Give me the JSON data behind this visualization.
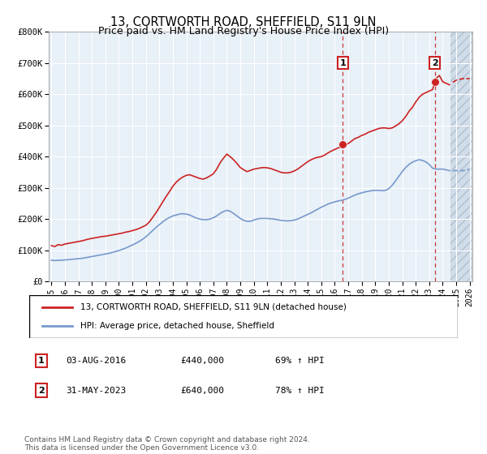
{
  "title": "13, CORTWORTH ROAD, SHEFFIELD, S11 9LN",
  "subtitle": "Price paid vs. HM Land Registry's House Price Index (HPI)",
  "ylim": [
    0,
    800000
  ],
  "xlim_start": 1994.8,
  "xlim_end": 2026.2,
  "yticks": [
    0,
    100000,
    200000,
    300000,
    400000,
    500000,
    600000,
    700000,
    800000
  ],
  "ytick_labels": [
    "£0",
    "£100K",
    "£200K",
    "£300K",
    "£400K",
    "£500K",
    "£600K",
    "£700K",
    "£800K"
  ],
  "xtick_years": [
    1995,
    1996,
    1997,
    1998,
    1999,
    2000,
    2001,
    2002,
    2003,
    2004,
    2005,
    2006,
    2007,
    2008,
    2009,
    2010,
    2011,
    2012,
    2013,
    2014,
    2015,
    2016,
    2017,
    2018,
    2019,
    2020,
    2021,
    2022,
    2023,
    2024,
    2025,
    2026
  ],
  "sale1_x": 2016.6,
  "sale1_y": 440000,
  "sale1_label": "1",
  "sale1_date": "03-AUG-2016",
  "sale1_price": "£440,000",
  "sale1_hpi": "69% ↑ HPI",
  "sale2_x": 2023.42,
  "sale2_y": 640000,
  "sale2_label": "2",
  "sale2_date": "31-MAY-2023",
  "sale2_price": "£640,000",
  "sale2_hpi": "78% ↑ HPI",
  "hatch_start": 2024.6,
  "red_line_color": "#cc2222",
  "blue_line_color": "#7799cc",
  "marker_fill": "#cc2222",
  "bg_color": "#e8f0f8",
  "grid_color": "#ffffff",
  "legend_line1": "13, CORTWORTH ROAD, SHEFFIELD, S11 9LN (detached house)",
  "legend_line2": "HPI: Average price, detached house, Sheffield",
  "footnote": "Contains HM Land Registry data © Crown copyright and database right 2024.\nThis data is licensed under the Open Government Licence v3.0.",
  "red_years": [
    1995.0,
    1995.25,
    1995.5,
    1995.75,
    1996.0,
    1996.25,
    1996.5,
    1996.75,
    1997.0,
    1997.25,
    1997.5,
    1997.75,
    1998.0,
    1998.25,
    1998.5,
    1998.75,
    1999.0,
    1999.25,
    1999.5,
    1999.75,
    2000.0,
    2000.25,
    2000.5,
    2000.75,
    2001.0,
    2001.25,
    2001.5,
    2001.75,
    2002.0,
    2002.25,
    2002.5,
    2002.75,
    2003.0,
    2003.25,
    2003.5,
    2003.75,
    2004.0,
    2004.25,
    2004.5,
    2004.75,
    2005.0,
    2005.25,
    2005.5,
    2005.75,
    2006.0,
    2006.25,
    2006.5,
    2006.75,
    2007.0,
    2007.25,
    2007.5,
    2007.75,
    2008.0,
    2008.25,
    2008.5,
    2008.75,
    2009.0,
    2009.25,
    2009.5,
    2009.75,
    2010.0,
    2010.25,
    2010.5,
    2010.75,
    2011.0,
    2011.25,
    2011.5,
    2011.75,
    2012.0,
    2012.25,
    2012.5,
    2012.75,
    2013.0,
    2013.25,
    2013.5,
    2013.75,
    2014.0,
    2014.25,
    2014.5,
    2014.75,
    2015.0,
    2015.25,
    2015.5,
    2015.75,
    2016.0,
    2016.25,
    2016.5,
    2016.75,
    2017.0,
    2017.25,
    2017.5,
    2017.75,
    2018.0,
    2018.25,
    2018.5,
    2018.75,
    2019.0,
    2019.25,
    2019.5,
    2019.75,
    2020.0,
    2020.25,
    2020.5,
    2020.75,
    2021.0,
    2021.25,
    2021.5,
    2021.75,
    2022.0,
    2022.25,
    2022.5,
    2022.75,
    2023.0,
    2023.25,
    2023.5,
    2023.75,
    2024.0,
    2024.25,
    2024.5,
    2024.75,
    2025.0,
    2025.5,
    2026.0
  ],
  "red_vals": [
    115000,
    112000,
    118000,
    116000,
    120000,
    122000,
    124000,
    126000,
    128000,
    130000,
    133000,
    136000,
    138000,
    140000,
    142000,
    144000,
    145000,
    147000,
    149000,
    151000,
    153000,
    155000,
    158000,
    160000,
    163000,
    166000,
    170000,
    175000,
    180000,
    190000,
    205000,
    220000,
    237000,
    255000,
    272000,
    288000,
    305000,
    318000,
    328000,
    335000,
    340000,
    342000,
    338000,
    334000,
    330000,
    328000,
    332000,
    338000,
    345000,
    360000,
    380000,
    395000,
    408000,
    400000,
    390000,
    378000,
    365000,
    358000,
    352000,
    356000,
    360000,
    362000,
    364000,
    365000,
    364000,
    362000,
    358000,
    354000,
    350000,
    348000,
    348000,
    350000,
    354000,
    360000,
    368000,
    376000,
    384000,
    390000,
    395000,
    398000,
    400000,
    405000,
    412000,
    418000,
    423000,
    428000,
    432000,
    436000,
    442000,
    450000,
    458000,
    462000,
    468000,
    472000,
    478000,
    482000,
    486000,
    490000,
    492000,
    492000,
    490000,
    492000,
    498000,
    505000,
    515000,
    528000,
    545000,
    558000,
    575000,
    590000,
    600000,
    605000,
    610000,
    615000,
    650000,
    660000,
    640000,
    635000,
    630000,
    638000,
    645000,
    650000,
    650000,
    655000,
    660000
  ],
  "blue_years": [
    1995.0,
    1995.25,
    1995.5,
    1995.75,
    1996.0,
    1996.25,
    1996.5,
    1996.75,
    1997.0,
    1997.25,
    1997.5,
    1997.75,
    1998.0,
    1998.25,
    1998.5,
    1998.75,
    1999.0,
    1999.25,
    1999.5,
    1999.75,
    2000.0,
    2000.25,
    2000.5,
    2000.75,
    2001.0,
    2001.25,
    2001.5,
    2001.75,
    2002.0,
    2002.25,
    2002.5,
    2002.75,
    2003.0,
    2003.25,
    2003.5,
    2003.75,
    2004.0,
    2004.25,
    2004.5,
    2004.75,
    2005.0,
    2005.25,
    2005.5,
    2005.75,
    2006.0,
    2006.25,
    2006.5,
    2006.75,
    2007.0,
    2007.25,
    2007.5,
    2007.75,
    2008.0,
    2008.25,
    2008.5,
    2008.75,
    2009.0,
    2009.25,
    2009.5,
    2009.75,
    2010.0,
    2010.25,
    2010.5,
    2010.75,
    2011.0,
    2011.25,
    2011.5,
    2011.75,
    2012.0,
    2012.25,
    2012.5,
    2012.75,
    2013.0,
    2013.25,
    2013.5,
    2013.75,
    2014.0,
    2014.25,
    2014.5,
    2014.75,
    2015.0,
    2015.25,
    2015.5,
    2015.75,
    2016.0,
    2016.25,
    2016.5,
    2016.75,
    2017.0,
    2017.25,
    2017.5,
    2017.75,
    2018.0,
    2018.25,
    2018.5,
    2018.75,
    2019.0,
    2019.25,
    2019.5,
    2019.75,
    2020.0,
    2020.25,
    2020.5,
    2020.75,
    2021.0,
    2021.25,
    2021.5,
    2021.75,
    2022.0,
    2022.25,
    2022.5,
    2022.75,
    2023.0,
    2023.25,
    2023.5,
    2023.75,
    2024.0,
    2024.25,
    2024.5,
    2024.75,
    2025.0,
    2025.5,
    2026.0
  ],
  "blue_vals": [
    68000,
    67000,
    68000,
    68000,
    69000,
    70000,
    71000,
    72000,
    73000,
    74000,
    76000,
    78000,
    80000,
    82000,
    84000,
    86000,
    88000,
    90000,
    93000,
    96000,
    99000,
    103000,
    107000,
    112000,
    117000,
    122000,
    128000,
    135000,
    143000,
    153000,
    163000,
    173000,
    182000,
    191000,
    199000,
    205000,
    210000,
    213000,
    216000,
    217000,
    216000,
    213000,
    208000,
    203000,
    200000,
    198000,
    198000,
    200000,
    204000,
    210000,
    218000,
    224000,
    228000,
    225000,
    218000,
    210000,
    202000,
    196000,
    193000,
    193000,
    197000,
    200000,
    202000,
    202000,
    202000,
    201000,
    200000,
    198000,
    196000,
    195000,
    194000,
    195000,
    197000,
    200000,
    205000,
    210000,
    215000,
    220000,
    226000,
    232000,
    238000,
    243000,
    248000,
    252000,
    255000,
    258000,
    260000,
    263000,
    267000,
    272000,
    277000,
    281000,
    284000,
    287000,
    289000,
    291000,
    292000,
    292000,
    291000,
    292000,
    297000,
    308000,
    322000,
    337000,
    352000,
    365000,
    375000,
    382000,
    387000,
    390000,
    388000,
    383000,
    375000,
    363000,
    360000,
    360000,
    360000,
    358000,
    355000,
    355000,
    355000,
    355000,
    360000
  ]
}
